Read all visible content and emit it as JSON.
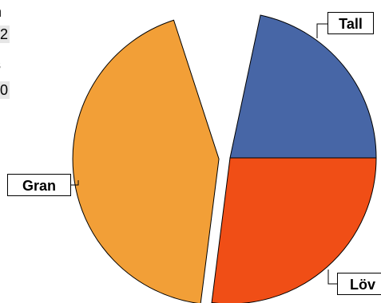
{
  "chart_data": {
    "type": "pie",
    "title": "",
    "categories": [
      "Tall",
      "Löv",
      "Gran"
    ],
    "values": [
      30,
      27,
      43
    ],
    "colors": [
      "#4766a6",
      "#f04e16",
      "#f29f37"
    ],
    "exploded": [
      "Gran"
    ],
    "legend": "none"
  },
  "cropped_left_text": [
    "n",
    "2",
    "s",
    "0"
  ]
}
